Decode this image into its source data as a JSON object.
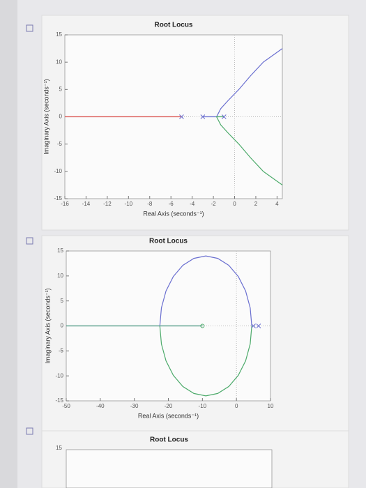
{
  "chart_data": [
    {
      "type": "line",
      "title": "Root Locus",
      "x_label": "Real Axis (seconds⁻¹)",
      "y_label": "Imaginary Axis (seconds⁻¹)",
      "xlim": [
        -16,
        4.5
      ],
      "ylim": [
        -15,
        15
      ],
      "xticks": [
        -16,
        -14,
        -12,
        -10,
        -8,
        -6,
        -4,
        -2,
        0,
        2,
        4
      ],
      "yticks": [
        -15,
        -10,
        -5,
        0,
        5,
        10,
        15
      ],
      "series": [
        {
          "color": "#d9534f",
          "x": [
            -16,
            -5
          ],
          "values": [
            0,
            0
          ]
        },
        {
          "color": "#6a6fd0",
          "x": [
            -3,
            -1.7,
            -1.3,
            -0.6,
            0.4,
            1.5,
            2.7,
            4.5
          ],
          "values": [
            0,
            0,
            1.5,
            3,
            5,
            7.5,
            10,
            12.5
          ]
        },
        {
          "color": "#4caa6a",
          "x": [
            -1,
            -1.7,
            -1.3,
            -0.6,
            0.4,
            1.5,
            2.7,
            4.5
          ],
          "values": [
            0,
            0,
            -1.5,
            -3,
            -5,
            -7.5,
            -10,
            -12.5
          ]
        },
        {
          "color": "#6a6fd0",
          "marker": "x",
          "x": [
            -5,
            -3,
            -1
          ],
          "values": [
            0,
            0,
            0
          ]
        }
      ]
    },
    {
      "type": "line",
      "title": "Root Locus",
      "x_label": "Real Axis (seconds⁻¹)",
      "y_label": "Imaginary Axis (seconds⁻¹)",
      "xlim": [
        -50,
        10
      ],
      "ylim": [
        -15,
        15
      ],
      "xticks": [
        -50,
        -40,
        -30,
        -20,
        -10,
        0,
        10
      ],
      "yticks": [
        -15,
        -10,
        -5,
        0,
        5,
        10,
        15
      ],
      "series": [
        {
          "color": "#3e8f7a",
          "x": [
            -50,
            -10
          ],
          "values": [
            0,
            0
          ]
        },
        {
          "color": "#6a6fd0",
          "x": [
            4.5,
            4.04,
            2.69,
            0.54,
            -2.25,
            -5.5,
            -9,
            -12.5,
            -15.75,
            -18.54,
            -20.69,
            -22.04,
            -22.5
          ],
          "values": [
            0,
            3.62,
            7,
            9.9,
            12.12,
            13.52,
            14,
            13.52,
            12.12,
            9.9,
            7,
            3.62,
            0
          ]
        },
        {
          "color": "#4caa6a",
          "x": [
            4.5,
            4.04,
            2.69,
            0.54,
            -2.25,
            -5.5,
            -9,
            -12.5,
            -15.75,
            -18.54,
            -20.69,
            -22.04,
            -22.5
          ],
          "values": [
            0,
            -3.62,
            -7,
            -9.9,
            -12.12,
            -13.52,
            -14,
            -13.52,
            -12.12,
            -9.9,
            -7,
            -3.62,
            0
          ]
        },
        {
          "color": "#6a6fd0",
          "marker": "x",
          "x": [
            5,
            6.5
          ],
          "values": [
            0,
            0
          ]
        },
        {
          "color": "#4caa6a",
          "marker": "o",
          "x": [
            -10
          ],
          "values": [
            0
          ]
        }
      ]
    },
    {
      "type": "line",
      "title": "Root Locus",
      "yticks": [
        15
      ]
    }
  ]
}
